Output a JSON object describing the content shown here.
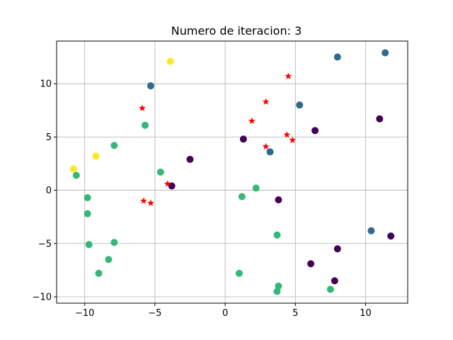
{
  "chart_data": {
    "type": "scatter",
    "title": "Numero de iteracion: 3",
    "xlabel": "",
    "ylabel": "",
    "xlim": [
      -12,
      13
    ],
    "ylim": [
      -10.6,
      14
    ],
    "xticks": [
      -10,
      -5,
      0,
      5,
      10
    ],
    "yticks": [
      -10,
      -5,
      0,
      5,
      10
    ],
    "grid": true,
    "colors": {
      "cluster_0": "#440154",
      "cluster_1": "#31688e",
      "cluster_2": "#35b779",
      "cluster_3": "#fde725",
      "centroid": "#ff0000",
      "grid": "#b0b0b0",
      "axes": "#000000"
    },
    "series": [
      {
        "cluster": "cluster_0",
        "points": [
          [
            -3.8,
            0.4
          ],
          [
            -2.5,
            2.9
          ],
          [
            1.3,
            4.8
          ],
          [
            3.8,
            -0.9
          ],
          [
            6.4,
            5.6
          ],
          [
            11.0,
            6.7
          ],
          [
            11.8,
            -4.3
          ],
          [
            8.0,
            -5.5
          ],
          [
            6.1,
            -6.9
          ],
          [
            7.8,
            -8.5
          ]
        ]
      },
      {
        "cluster": "cluster_1",
        "points": [
          [
            -5.3,
            9.8
          ],
          [
            5.3,
            8.0
          ],
          [
            3.2,
            3.6
          ],
          [
            8.0,
            12.5
          ],
          [
            11.4,
            12.9
          ],
          [
            10.4,
            -3.8
          ]
        ]
      },
      {
        "cluster": "cluster_2",
        "points": [
          [
            -10.6,
            1.4
          ],
          [
            -9.8,
            -0.7
          ],
          [
            -9.8,
            -2.2
          ],
          [
            -9.7,
            -5.1
          ],
          [
            -7.9,
            4.2
          ],
          [
            -7.9,
            -4.9
          ],
          [
            -8.3,
            -6.5
          ],
          [
            -9.0,
            -7.8
          ],
          [
            -5.7,
            6.1
          ],
          [
            -4.6,
            1.7
          ],
          [
            1.2,
            -0.6
          ],
          [
            2.2,
            0.2
          ],
          [
            3.7,
            -4.2
          ],
          [
            1.0,
            -7.8
          ],
          [
            3.8,
            -9.0
          ],
          [
            3.7,
            -9.5
          ],
          [
            7.5,
            -9.3
          ]
        ]
      },
      {
        "cluster": "cluster_3",
        "points": [
          [
            -10.8,
            2.0
          ],
          [
            -9.2,
            3.2
          ],
          [
            -3.9,
            12.1
          ]
        ]
      }
    ],
    "centroids": [
      [
        4.5,
        10.7
      ],
      [
        2.9,
        8.3
      ],
      [
        -5.9,
        7.7
      ],
      [
        1.9,
        6.5
      ],
      [
        4.4,
        5.2
      ],
      [
        4.8,
        4.7
      ],
      [
        2.9,
        4.1
      ],
      [
        -4.1,
        0.6
      ],
      [
        -5.8,
        -1.0
      ],
      [
        -5.3,
        -1.2
      ]
    ]
  }
}
